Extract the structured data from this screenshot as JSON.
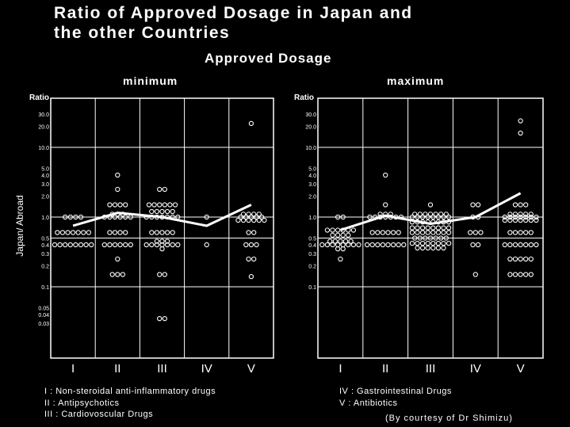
{
  "title_line1": "Ratio of Approved Dosage in Japan and",
  "title_line2": "the other Countries",
  "subtitle": "Approved Dosage",
  "ylabel": "Japan/ Abroad",
  "legend": [
    "I : Non-steroidal anti-inflammatory drugs",
    "II : Antipsychotics",
    "III : Cardiovoscular Drugs",
    "IV : Gastrointestinal Drugs",
    "V : Antibiotics"
  ],
  "credit": "(By courtesy of Dr Shimizu)",
  "chart_data": [
    {
      "type": "scatter",
      "title": "minimum",
      "ylabel": "Ratio",
      "yscale": "log",
      "categories": [
        "I",
        "II",
        "III",
        "IV",
        "V"
      ],
      "yticks": [
        "30.0",
        "20.0",
        "10.0",
        "5.0",
        "4.0",
        "3.0",
        "2.0",
        "1.0",
        "0.5",
        "0.4",
        "0.3",
        "0.2",
        "0.1",
        "0.05",
        "0.04",
        "0.03"
      ],
      "ytick_values": [
        30,
        20,
        10,
        5,
        4,
        3,
        2,
        1,
        0.5,
        0.4,
        0.3,
        0.2,
        0.1,
        0.05,
        0.04,
        0.03
      ],
      "ylim": [
        0.012,
        60
      ],
      "points": [
        {
          "cat": 0,
          "y": 1.0,
          "n": 4
        },
        {
          "cat": 0,
          "y": 0.6,
          "n": 7
        },
        {
          "cat": 0,
          "y": 0.4,
          "n": 8
        },
        {
          "cat": 1,
          "y": 4.0,
          "n": 1
        },
        {
          "cat": 1,
          "y": 2.5,
          "n": 1
        },
        {
          "cat": 1,
          "y": 1.5,
          "n": 4
        },
        {
          "cat": 1,
          "y": 1.1,
          "n": 3
        },
        {
          "cat": 1,
          "y": 1.0,
          "n": 6
        },
        {
          "cat": 1,
          "y": 0.6,
          "n": 4
        },
        {
          "cat": 1,
          "y": 0.4,
          "n": 6
        },
        {
          "cat": 1,
          "y": 0.25,
          "n": 1
        },
        {
          "cat": 1,
          "y": 0.15,
          "n": 3
        },
        {
          "cat": 2,
          "y": 2.5,
          "n": 2
        },
        {
          "cat": 2,
          "y": 1.5,
          "n": 6
        },
        {
          "cat": 2,
          "y": 1.2,
          "n": 5
        },
        {
          "cat": 2,
          "y": 1.0,
          "n": 7
        },
        {
          "cat": 2,
          "y": 0.6,
          "n": 5
        },
        {
          "cat": 2,
          "y": 0.45,
          "n": 3
        },
        {
          "cat": 2,
          "y": 0.4,
          "n": 7
        },
        {
          "cat": 2,
          "y": 0.35,
          "n": 1
        },
        {
          "cat": 2,
          "y": 0.15,
          "n": 2
        },
        {
          "cat": 2,
          "y": 0.035,
          "n": 2
        },
        {
          "cat": 3,
          "y": 1.0,
          "n": 1
        },
        {
          "cat": 3,
          "y": 0.4,
          "n": 1
        },
        {
          "cat": 4,
          "y": 22.0,
          "n": 1
        },
        {
          "cat": 4,
          "y": 1.1,
          "n": 4
        },
        {
          "cat": 4,
          "y": 1.0,
          "n": 5
        },
        {
          "cat": 4,
          "y": 0.9,
          "n": 6
        },
        {
          "cat": 4,
          "y": 0.6,
          "n": 2
        },
        {
          "cat": 4,
          "y": 0.4,
          "n": 3
        },
        {
          "cat": 4,
          "y": 0.25,
          "n": 2
        },
        {
          "cat": 4,
          "y": 0.14,
          "n": 1
        }
      ],
      "line": [
        0.75,
        1.15,
        1.0,
        0.75,
        1.5
      ]
    },
    {
      "type": "scatter",
      "title": "maximum",
      "ylabel": "Ratio",
      "yscale": "log",
      "categories": [
        "I",
        "II",
        "III",
        "IV",
        "V"
      ],
      "yticks": [
        "30.0",
        "20.0",
        "10.0",
        "5.0",
        "4.0",
        "3.0",
        "2.0",
        "1.0",
        "0.5",
        "0.4",
        "0.3",
        "0.2",
        "0.1"
      ],
      "ytick_values": [
        30,
        20,
        10,
        5,
        4,
        3,
        2,
        1,
        0.5,
        0.4,
        0.3,
        0.2,
        0.1
      ],
      "ylim": [
        0.012,
        60
      ],
      "points": [
        {
          "cat": 0,
          "y": 1.0,
          "n": 2
        },
        {
          "cat": 0,
          "y": 0.65,
          "n": 6
        },
        {
          "cat": 0,
          "y": 0.55,
          "n": 4
        },
        {
          "cat": 0,
          "y": 0.45,
          "n": 5
        },
        {
          "cat": 0,
          "y": 0.4,
          "n": 8
        },
        {
          "cat": 0,
          "y": 0.35,
          "n": 2
        },
        {
          "cat": 0,
          "y": 0.25,
          "n": 1
        },
        {
          "cat": 1,
          "y": 4.0,
          "n": 1
        },
        {
          "cat": 1,
          "y": 1.5,
          "n": 1
        },
        {
          "cat": 1,
          "y": 1.1,
          "n": 3
        },
        {
          "cat": 1,
          "y": 1.0,
          "n": 7
        },
        {
          "cat": 1,
          "y": 0.6,
          "n": 6
        },
        {
          "cat": 1,
          "y": 0.4,
          "n": 8
        },
        {
          "cat": 2,
          "y": 1.5,
          "n": 1
        },
        {
          "cat": 2,
          "y": 1.1,
          "n": 7
        },
        {
          "cat": 2,
          "y": 1.0,
          "n": 8
        },
        {
          "cat": 2,
          "y": 0.85,
          "n": 8
        },
        {
          "cat": 2,
          "y": 0.7,
          "n": 8
        },
        {
          "cat": 2,
          "y": 0.6,
          "n": 8
        },
        {
          "cat": 2,
          "y": 0.5,
          "n": 7
        },
        {
          "cat": 2,
          "y": 0.42,
          "n": 8
        },
        {
          "cat": 2,
          "y": 0.36,
          "n": 6
        },
        {
          "cat": 3,
          "y": 1.5,
          "n": 2
        },
        {
          "cat": 3,
          "y": 1.0,
          "n": 2
        },
        {
          "cat": 3,
          "y": 0.6,
          "n": 3
        },
        {
          "cat": 3,
          "y": 0.4,
          "n": 2
        },
        {
          "cat": 3,
          "y": 0.15,
          "n": 1
        },
        {
          "cat": 4,
          "y": 24.0,
          "n": 1
        },
        {
          "cat": 4,
          "y": 16.0,
          "n": 1
        },
        {
          "cat": 4,
          "y": 1.5,
          "n": 3
        },
        {
          "cat": 4,
          "y": 1.1,
          "n": 5
        },
        {
          "cat": 4,
          "y": 1.0,
          "n": 7
        },
        {
          "cat": 4,
          "y": 0.9,
          "n": 7
        },
        {
          "cat": 4,
          "y": 0.6,
          "n": 5
        },
        {
          "cat": 4,
          "y": 0.4,
          "n": 7
        },
        {
          "cat": 4,
          "y": 0.25,
          "n": 5
        },
        {
          "cat": 4,
          "y": 0.15,
          "n": 5
        }
      ],
      "line": [
        0.65,
        1.05,
        0.8,
        1.0,
        2.2
      ]
    }
  ]
}
